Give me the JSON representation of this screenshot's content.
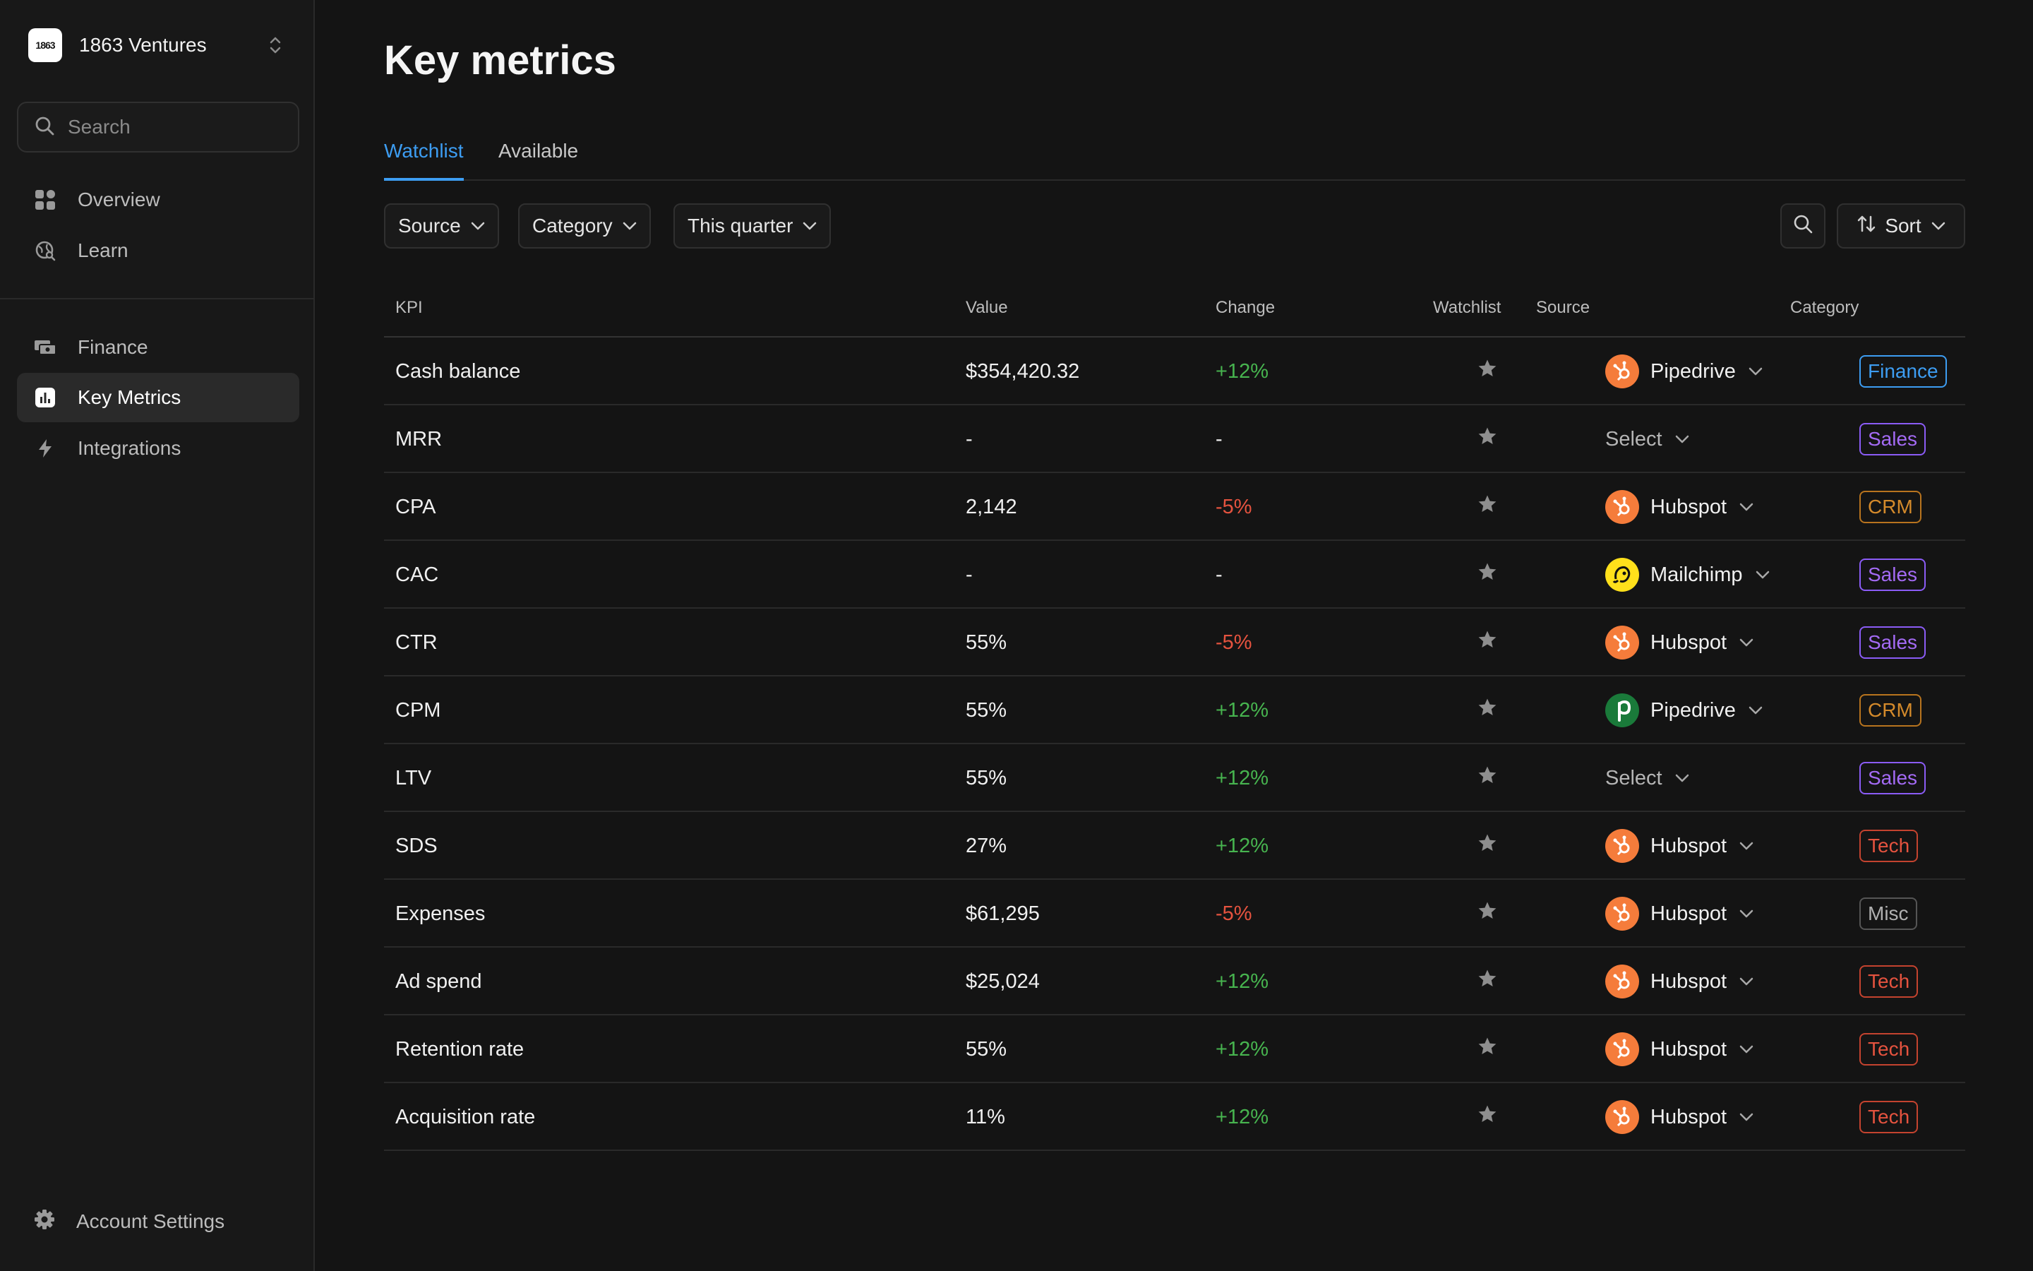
{
  "org": {
    "logo_text": "1863",
    "name": "1863 Ventures"
  },
  "search": {
    "placeholder": "Search"
  },
  "nav": {
    "overview": "Overview",
    "learn": "Learn",
    "finance": "Finance",
    "key_metrics": "Key Metrics",
    "integrations": "Integrations",
    "account_settings": "Account Settings"
  },
  "page": {
    "title": "Key metrics"
  },
  "tabs": {
    "watchlist": "Watchlist",
    "available": "Available"
  },
  "filters": {
    "source": "Source",
    "category": "Category",
    "period": "This quarter",
    "sort": "Sort"
  },
  "columns": {
    "kpi": "KPI",
    "value": "Value",
    "change": "Change",
    "watchlist": "Watchlist",
    "source": "Source",
    "category": "Category"
  },
  "colors": {
    "accent": "#3d9df2",
    "positive": "#47b44f",
    "negative": "#e5533f",
    "hubspot": "#f57c3b",
    "mailchimp": "#ffe01b",
    "pipedrive": "#1a7a3a"
  },
  "rows": [
    {
      "kpi": "Cash balance",
      "value": "$354,420.32",
      "change": "+12%",
      "trend": "pos",
      "source": "Pipedrive",
      "source_icon": "hubspot-logo-icon",
      "category": "Finance",
      "cat_style": "finance"
    },
    {
      "kpi": "MRR",
      "value": "-",
      "change": "-",
      "trend": "none",
      "source": "Select",
      "source_icon": "",
      "category": "Sales",
      "cat_style": "sales"
    },
    {
      "kpi": "CPA",
      "value": "2,142",
      "change": "-5%",
      "trend": "neg",
      "source": "Hubspot",
      "source_icon": "hubspot-logo-icon",
      "category": "CRM",
      "cat_style": "crm"
    },
    {
      "kpi": "CAC",
      "value": "-",
      "change": "-",
      "trend": "none",
      "source": "Mailchimp",
      "source_icon": "mailchimp-logo-icon",
      "category": "Sales",
      "cat_style": "sales"
    },
    {
      "kpi": "CTR",
      "value": "55%",
      "change": "-5%",
      "trend": "neg",
      "source": "Hubspot",
      "source_icon": "hubspot-logo-icon",
      "category": "Sales",
      "cat_style": "sales"
    },
    {
      "kpi": "CPM",
      "value": "55%",
      "change": "+12%",
      "trend": "pos",
      "source": "Pipedrive",
      "source_icon": "pipedrive-logo-icon",
      "category": "CRM",
      "cat_style": "crm"
    },
    {
      "kpi": "LTV",
      "value": "55%",
      "change": "+12%",
      "trend": "pos",
      "source": "Select",
      "source_icon": "",
      "category": "Sales",
      "cat_style": "sales"
    },
    {
      "kpi": "SDS",
      "value": "27%",
      "change": "+12%",
      "trend": "pos",
      "source": "Hubspot",
      "source_icon": "hubspot-logo-icon",
      "category": "Tech",
      "cat_style": "tech"
    },
    {
      "kpi": "Expenses",
      "value": "$61,295",
      "change": "-5%",
      "trend": "neg",
      "source": "Hubspot",
      "source_icon": "hubspot-logo-icon",
      "category": "Misc",
      "cat_style": "misc"
    },
    {
      "kpi": "Ad spend",
      "value": "$25,024",
      "change": "+12%",
      "trend": "pos",
      "source": "Hubspot",
      "source_icon": "hubspot-logo-icon",
      "category": "Tech",
      "cat_style": "tech"
    },
    {
      "kpi": "Retention rate",
      "value": "55%",
      "change": "+12%",
      "trend": "pos",
      "source": "Hubspot",
      "source_icon": "hubspot-logo-icon",
      "category": "Tech",
      "cat_style": "tech"
    },
    {
      "kpi": "Acquisition rate",
      "value": "11%",
      "change": "+12%",
      "trend": "pos",
      "source": "Hubspot",
      "source_icon": "hubspot-logo-icon",
      "category": "Tech",
      "cat_style": "tech"
    }
  ]
}
